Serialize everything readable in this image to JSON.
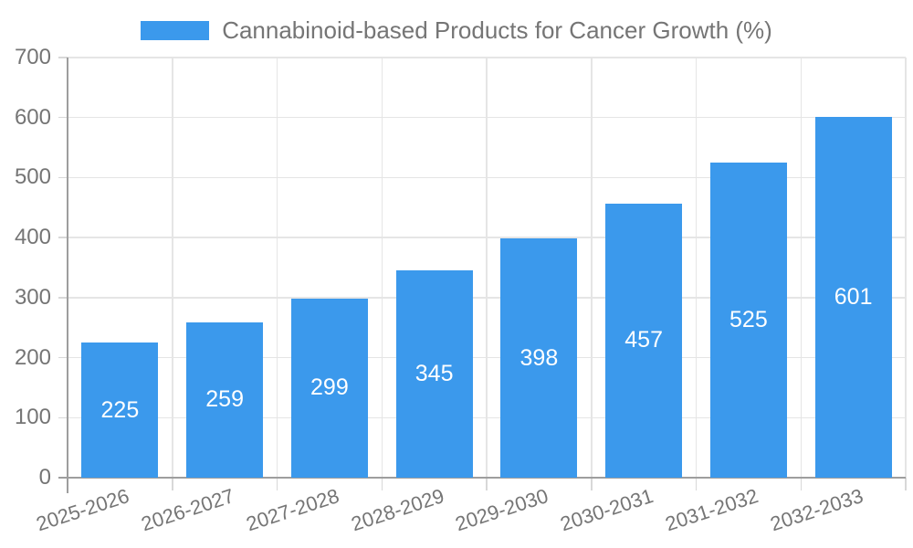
{
  "chart_data": {
    "type": "bar",
    "title": "Cannabinoid-based Products for Cancer Growth (%)",
    "legend_label": "Cannabinoid-based Products for Cancer Growth (%)",
    "legend_position": "top",
    "categories": [
      "2025-2026",
      "2026-2027",
      "2027-2028",
      "2028-2029",
      "2029-2030",
      "2030-2031",
      "2031-2032",
      "2032-2033"
    ],
    "values": [
      225,
      259,
      299,
      345,
      398,
      457,
      525,
      601
    ],
    "value_labels": [
      "225",
      "259",
      "299",
      "345",
      "398",
      "457",
      "525",
      "601"
    ],
    "xlabel": "",
    "ylabel": "",
    "ylim": [
      0,
      700
    ],
    "ytick_step": 100,
    "ytick_labels": [
      "0",
      "100",
      "200",
      "300",
      "400",
      "500",
      "600",
      "700"
    ],
    "grid": true,
    "colors": {
      "bar": "#3b99ec",
      "text": "#757575",
      "value_label": "#ffffff",
      "grid": "#e5e5e5",
      "axis": "#9e9e9e",
      "minor_tick": "#d8d8d8",
      "background": "#ffffff"
    }
  }
}
